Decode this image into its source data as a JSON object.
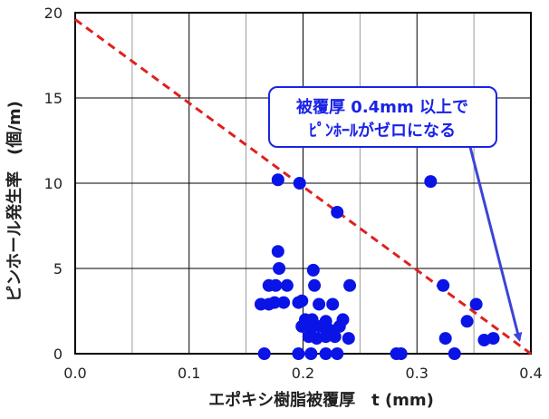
{
  "chart_data": {
    "type": "scatter",
    "xlabel": "エポキシ樹脂被覆厚　t (mm)",
    "ylabel": "ピンホール発生率　(個/m)",
    "xlim": [
      0,
      0.4
    ],
    "ylim": [
      0,
      20
    ],
    "x_ticks": [
      "0.0",
      "0.1",
      "0.2",
      "0.3",
      "0.4"
    ],
    "y_ticks": [
      "0",
      "5",
      "10",
      "15",
      "20"
    ],
    "grid": true,
    "colors": {
      "points": "#0a14e6",
      "trend": "#e02020",
      "callout_border": "#1a23e6",
      "callout_text": "#1a23e6"
    },
    "series": [
      {
        "marker": "circle",
        "x": [
          0.178,
          0.197,
          0.23,
          0.312,
          0.178,
          0.179,
          0.17,
          0.176,
          0.186,
          0.175,
          0.183,
          0.21,
          0.241,
          0.163,
          0.17,
          0.196,
          0.199,
          0.214,
          0.226,
          0.208,
          0.202,
          0.22,
          0.235,
          0.199,
          0.207,
          0.215,
          0.223,
          0.232,
          0.205,
          0.212,
          0.22,
          0.228,
          0.24,
          0.166,
          0.196,
          0.207,
          0.22,
          0.23,
          0.282,
          0.286,
          0.323,
          0.325,
          0.333,
          0.344,
          0.352,
          0.359,
          0.367,
          0.209
        ],
        "y": [
          10.2,
          10.0,
          8.3,
          10.1,
          6.0,
          5.0,
          4.0,
          4.0,
          4.0,
          3.0,
          3.0,
          4.0,
          4.0,
          2.9,
          2.9,
          3.0,
          3.1,
          2.9,
          2.9,
          2.0,
          2.0,
          1.9,
          2.0,
          1.6,
          1.5,
          1.6,
          1.4,
          1.6,
          1.0,
          0.9,
          1.0,
          1.0,
          0.9,
          0.0,
          0.0,
          0.0,
          0.0,
          0.0,
          0.0,
          0.0,
          4.0,
          0.9,
          0.0,
          1.9,
          2.9,
          0.8,
          0.9,
          4.9
        ]
      }
    ],
    "trend_line": {
      "style": "dashed",
      "x": [
        0,
        0.4
      ],
      "y": [
        19.6,
        0
      ]
    },
    "annotation": {
      "lines": [
        "被覆厚 0.4mm 以上で",
        "ﾋﾟﾝﾎｰﾙがゼロになる"
      ],
      "arrow_to": {
        "x": 0.39,
        "y": 0.8
      }
    }
  }
}
